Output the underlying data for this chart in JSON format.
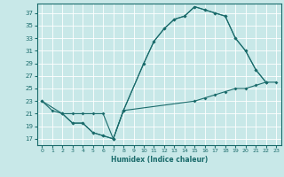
{
  "bg_color": "#c8e8e8",
  "line_color": "#1a6b6b",
  "grid_color": "#ffffff",
  "xlabel": "Humidex (Indice chaleur)",
  "xlim": [
    -0.5,
    23.5
  ],
  "ylim": [
    16,
    38.5
  ],
  "xticks": [
    0,
    1,
    2,
    3,
    4,
    5,
    6,
    7,
    8,
    9,
    10,
    11,
    12,
    13,
    14,
    15,
    16,
    17,
    18,
    19,
    20,
    21,
    22,
    23
  ],
  "yticks": [
    17,
    19,
    21,
    23,
    25,
    27,
    29,
    31,
    33,
    35,
    37
  ],
  "line1_x": [
    0,
    1,
    2,
    3,
    4,
    5,
    6,
    7,
    8,
    10,
    11,
    12,
    13,
    14,
    15,
    16,
    17,
    18,
    19,
    20,
    21,
    22
  ],
  "line1_y": [
    23,
    21.5,
    21,
    19.5,
    19.5,
    18,
    17.5,
    17,
    21.5,
    29,
    32.5,
    34.5,
    36,
    36.5,
    38,
    37.5,
    37,
    36.5,
    33,
    31,
    28,
    26
  ],
  "line2_x": [
    0,
    2,
    3,
    4,
    5,
    6,
    7,
    8,
    15,
    16,
    17,
    18,
    19,
    20,
    21,
    22,
    23
  ],
  "line2_y": [
    23,
    21,
    21,
    21,
    21,
    21,
    17,
    21.5,
    23,
    23.5,
    24,
    24.5,
    25,
    25,
    25.5,
    26,
    26
  ],
  "line3_x": [
    2,
    3,
    4,
    5,
    6,
    7,
    8,
    10,
    11,
    12,
    13,
    14,
    15,
    16,
    17,
    18,
    19,
    20,
    21,
    22
  ],
  "line3_y": [
    21,
    19.5,
    19.5,
    18,
    17.5,
    17,
    21.5,
    29,
    32.5,
    34.5,
    36,
    36.5,
    38,
    37.5,
    37,
    36.5,
    33,
    31,
    28,
    26
  ]
}
